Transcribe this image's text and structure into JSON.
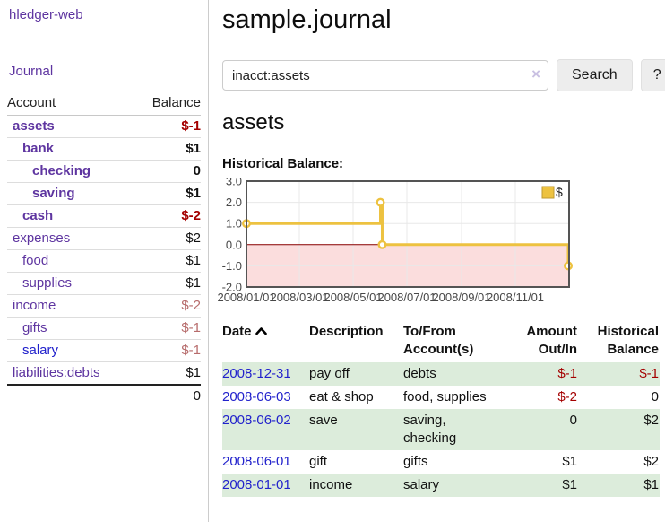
{
  "brand": "hledger-web",
  "nav": {
    "journal": "Journal"
  },
  "colors": {
    "link_visited": "#5e35a0",
    "link_unvisited": "#2222cc",
    "negative_strong": "#a40000",
    "negative_muted": "#b76c6c",
    "row_highlight": "#dcecdb"
  },
  "accounts_panel": {
    "col_account": "Account",
    "col_balance": "Balance",
    "rows": [
      {
        "name": "assets",
        "balance": "$-1",
        "level": 0,
        "bold": true
      },
      {
        "name": "bank",
        "balance": "$1",
        "level": 1,
        "bold": true
      },
      {
        "name": "checking",
        "balance": "0",
        "level": 2,
        "bold": true
      },
      {
        "name": "saving",
        "balance": "$1",
        "level": 2,
        "bold": true
      },
      {
        "name": "cash",
        "balance": "$-2",
        "level": 1,
        "bold": true
      },
      {
        "name": "expenses",
        "balance": "$2",
        "level": 0,
        "bold": false
      },
      {
        "name": "food",
        "balance": "$1",
        "level": 1,
        "bold": false
      },
      {
        "name": "supplies",
        "balance": "$1",
        "level": 1,
        "bold": false
      },
      {
        "name": "income",
        "balance": "$-2",
        "level": 0,
        "bold": false
      },
      {
        "name": "gifts",
        "balance": "$-1",
        "level": 1,
        "bold": false
      },
      {
        "name": "salary",
        "balance": "$-1",
        "level": 1,
        "bold": false,
        "unvisited": true
      },
      {
        "name": "liabilities:debts",
        "balance": "$1",
        "level": 0,
        "bold": false
      }
    ],
    "total": "0"
  },
  "page": {
    "title": "sample.journal",
    "account_heading": "assets",
    "chart_heading": "Historical Balance:"
  },
  "search": {
    "value": "inacct:assets",
    "clear_icon": "×",
    "submit_label": "Search",
    "help_label": "?"
  },
  "chart_data": {
    "type": "line",
    "step": true,
    "title": "Historical Balance",
    "series": [
      {
        "name": "$",
        "color": "#edc240",
        "points": [
          [
            "2008-01-01",
            1
          ],
          [
            "2008-06-01",
            2
          ],
          [
            "2008-06-03",
            0
          ],
          [
            "2008-12-31",
            -1
          ]
        ]
      }
    ],
    "x_range": [
      "2008-01-01",
      "2009-01-01"
    ],
    "y_range": [
      -2,
      3
    ],
    "x_ticks": [
      {
        "date": "2008-01-01",
        "label": "2008/01/01"
      },
      {
        "date": "2008-03-01",
        "label": "2008/03/01"
      },
      {
        "date": "2008-05-01",
        "label": "2008/05/01"
      },
      {
        "date": "2008-07-01",
        "label": "2008/07/01"
      },
      {
        "date": "2008-09-01",
        "label": "2008/09/01"
      },
      {
        "date": "2008-11-01",
        "label": "2008/11/01"
      }
    ],
    "y_ticks": [
      "3.0",
      "2.0",
      "1.0",
      "0.0",
      "-1.0",
      "-2.0"
    ],
    "legend": "$",
    "legend_position": "top-right",
    "grid": true,
    "colors": {
      "series": "#edc240",
      "marker_fill": "#ffffff",
      "grid": "#e8e8e8",
      "border": "#545454",
      "negative_fill": "#fbdddd",
      "zero_line": "#8b0000",
      "tick_text": "#474747",
      "legend_box_border": "#c0992f"
    }
  },
  "register": {
    "headers": {
      "date": "Date",
      "description": "Description",
      "accounts": "To/From Account(s)",
      "amount": "Amount Out/In",
      "balance": "Historical Balance"
    },
    "rows": [
      {
        "date": "2008-12-31",
        "description": "pay off",
        "accounts": "debts",
        "amount": "$-1",
        "balance": "$-1"
      },
      {
        "date": "2008-06-03",
        "description": "eat & shop",
        "accounts": "food, supplies",
        "amount": "$-2",
        "balance": "0"
      },
      {
        "date": "2008-06-02",
        "description": "save",
        "accounts": "saving, checking",
        "amount": "0",
        "balance": "$2"
      },
      {
        "date": "2008-06-01",
        "description": "gift",
        "accounts": "gifts",
        "amount": "$1",
        "balance": "$2"
      },
      {
        "date": "2008-01-01",
        "description": "income",
        "accounts": "salary",
        "amount": "$1",
        "balance": "$1"
      }
    ]
  }
}
